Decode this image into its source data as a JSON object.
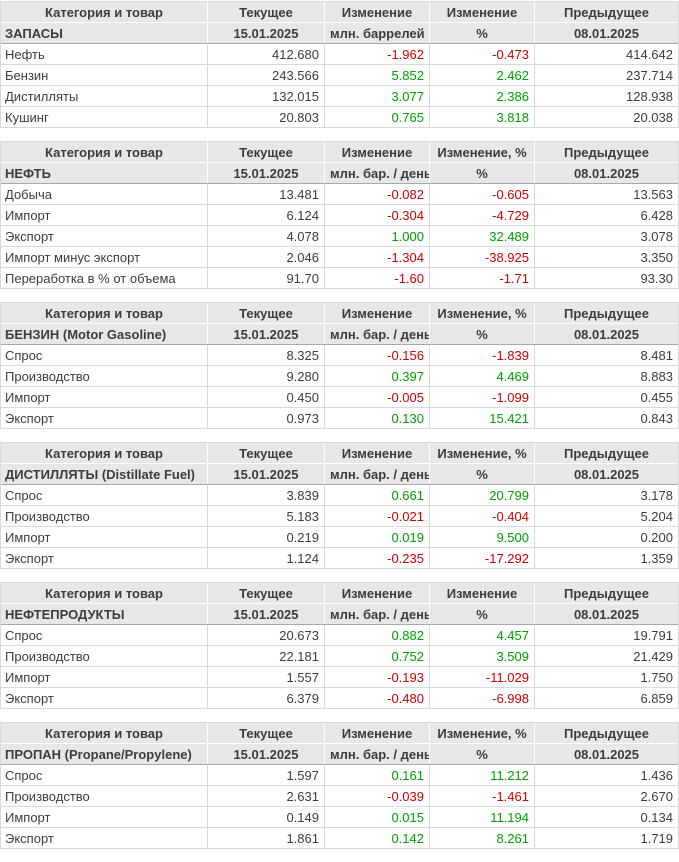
{
  "colors": {
    "positive": "#00a000",
    "negative": "#cf0000",
    "header_bg": "#e7e7e7",
    "body_text": "#3d3d3d",
    "grid_border": "#d9d9d9"
  },
  "chart_data": [
    {
      "type": "table",
      "title": "ЗАПАСЫ",
      "head": [
        "Категория и товар",
        "Текущее",
        "Изменение",
        "Изменение",
        "Предыдущее"
      ],
      "subhead": [
        "ЗАПАСЫ",
        "15.01.2025",
        "млн. баррелей",
        "%",
        "08.01.2025"
      ],
      "rows": [
        [
          "Нефть",
          "412.680",
          "-1.962",
          "-0.473",
          "414.642"
        ],
        [
          "Бензин",
          "243.566",
          "5.852",
          "2.462",
          "237.714"
        ],
        [
          "Дистилляты",
          "132.015",
          "3.077",
          "2.386",
          "128.938"
        ],
        [
          "Кушинг",
          "20.803",
          "0.765",
          "3.818",
          "20.038"
        ]
      ]
    },
    {
      "type": "table",
      "title": "НЕФТЬ",
      "head": [
        "Категория и товар",
        "Текущее",
        "Изменение",
        "Изменение, %",
        "Предыдущее"
      ],
      "subhead": [
        "НЕФТЬ",
        "15.01.2025",
        "млн. бар. / день",
        "%",
        "08.01.2025"
      ],
      "rows": [
        [
          "Добыча",
          "13.481",
          "-0.082",
          "-0.605",
          "13.563"
        ],
        [
          "Импорт",
          "6.124",
          "-0.304",
          "-4.729",
          "6.428"
        ],
        [
          "Экспорт",
          "4.078",
          "1.000",
          "32.489",
          "3.078"
        ],
        [
          "Импорт минус экспорт",
          "2.046",
          "-1.304",
          "-38.925",
          "3.350"
        ],
        [
          "Переработка в % от объема",
          "91.70",
          "-1.60",
          "-1.71",
          "93.30"
        ]
      ]
    },
    {
      "type": "table",
      "title": "БЕНЗИН (Motor Gasoline)",
      "head": [
        "Категория и товар",
        "Текущее",
        "Изменение",
        "Изменение, %",
        "Предыдущее"
      ],
      "subhead": [
        "БЕНЗИН (Motor Gasoline)",
        "15.01.2025",
        "млн. бар. / день",
        "%",
        "08.01.2025"
      ],
      "rows": [
        [
          "Спрос",
          "8.325",
          "-0.156",
          "-1.839",
          "8.481"
        ],
        [
          "Производство",
          "9.280",
          "0.397",
          "4.469",
          "8.883"
        ],
        [
          "Импорт",
          "0.450",
          "-0.005",
          "-1.099",
          "0.455"
        ],
        [
          "Экспорт",
          "0.973",
          "0.130",
          "15.421",
          "0.843"
        ]
      ]
    },
    {
      "type": "table",
      "title": "ДИСТИЛЛЯТЫ (Distillate Fuel)",
      "head": [
        "Категория и товар",
        "Текущее",
        "Изменение",
        "Изменение, %",
        "Предыдущее"
      ],
      "subhead": [
        "ДИСТИЛЛЯТЫ (Distillate Fuel)",
        "15.01.2025",
        "млн. бар. / день",
        "%",
        "08.01.2025"
      ],
      "rows": [
        [
          "Спрос",
          "3.839",
          "0.661",
          "20.799",
          "3.178"
        ],
        [
          "Производство",
          "5.183",
          "-0.021",
          "-0.404",
          "5.204"
        ],
        [
          "Импорт",
          "0.219",
          "0.019",
          "9.500",
          "0.200"
        ],
        [
          "Экспорт",
          "1.124",
          "-0.235",
          "-17.292",
          "1.359"
        ]
      ]
    },
    {
      "type": "table",
      "title": "НЕФТЕПРОДУКТЫ",
      "head": [
        "Категория и товар",
        "Текущее",
        "Изменение",
        "Изменение",
        "Предыдущее"
      ],
      "subhead": [
        "НЕФТЕПРОДУКТЫ",
        "15.01.2025",
        "млн. бар. / день",
        "%",
        "08.01.2025"
      ],
      "rows": [
        [
          "Спрос",
          "20.673",
          "0.882",
          "4.457",
          "19.791"
        ],
        [
          "Производство",
          "22.181",
          "0.752",
          "3.509",
          "21.429"
        ],
        [
          "Импорт",
          "1.557",
          "-0.193",
          "-11.029",
          "1.750"
        ],
        [
          "Экспорт",
          "6.379",
          "-0.480",
          "-6.998",
          "6.859"
        ]
      ]
    },
    {
      "type": "table",
      "title": "ПРОПАН (Propane/Propylene)",
      "head": [
        "Категория и товар",
        "Текущее",
        "Изменение",
        "Изменение, %",
        "Предыдущее"
      ],
      "subhead": [
        "ПРОПАН (Propane/Propylene)",
        "15.01.2025",
        "млн. бар. / день",
        "%",
        "08.01.2025"
      ],
      "rows": [
        [
          "Спрос",
          "1.597",
          "0.161",
          "11.212",
          "1.436"
        ],
        [
          "Производство",
          "2.631",
          "-0.039",
          "-1.461",
          "2.670"
        ],
        [
          "Импорт",
          "0.149",
          "0.015",
          "11.194",
          "0.134"
        ],
        [
          "Экспорт",
          "1.861",
          "0.142",
          "8.261",
          "1.719"
        ]
      ]
    }
  ]
}
